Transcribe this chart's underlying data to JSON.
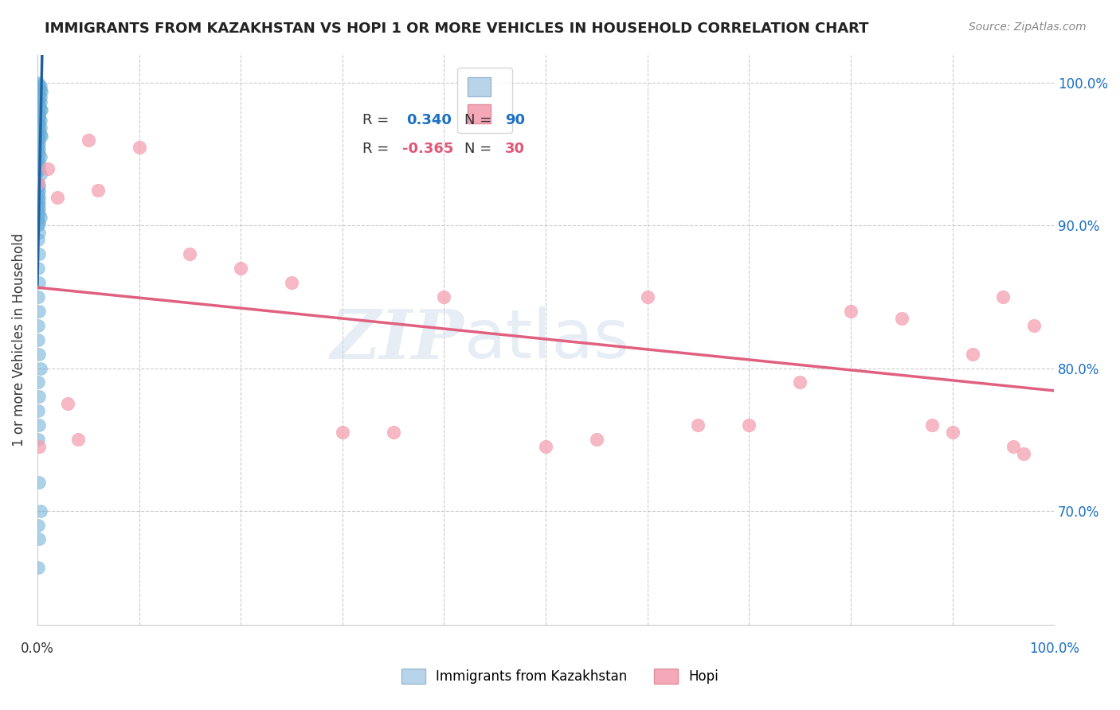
{
  "title": "IMMIGRANTS FROM KAZAKHSTAN VS HOPI 1 OR MORE VEHICLES IN HOUSEHOLD CORRELATION CHART",
  "source": "Source: ZipAtlas.com",
  "ylabel": "1 or more Vehicles in Household",
  "ylabel_right_ticks": [
    "70.0%",
    "80.0%",
    "90.0%",
    "100.0%"
  ],
  "ylabel_right_vals": [
    0.7,
    0.8,
    0.9,
    1.0
  ],
  "blue_color": "#6aaed6",
  "blue_line_color": "#2060a0",
  "pink_color": "#f4a0b0",
  "pink_line_color": "#e06080",
  "blue_R": 0.34,
  "blue_N": 90,
  "pink_R": -0.365,
  "pink_N": 30,
  "blue_scatter": {
    "x": [
      0.001,
      0.002,
      0.003,
      0.001,
      0.002,
      0.003,
      0.004,
      0.001,
      0.002,
      0.002,
      0.003,
      0.001,
      0.002,
      0.003,
      0.001,
      0.002,
      0.001,
      0.002,
      0.003,
      0.004,
      0.001,
      0.002,
      0.001,
      0.002,
      0.001,
      0.002,
      0.003,
      0.001,
      0.002,
      0.001,
      0.002,
      0.003,
      0.001,
      0.002,
      0.001,
      0.002,
      0.003,
      0.004,
      0.001,
      0.002,
      0.001,
      0.002,
      0.001,
      0.002,
      0.001,
      0.002,
      0.003,
      0.001,
      0.002,
      0.001,
      0.002,
      0.001,
      0.003,
      0.001,
      0.002,
      0.001,
      0.002,
      0.001,
      0.002,
      0.001,
      0.002,
      0.001,
      0.002,
      0.001,
      0.002,
      0.003,
      0.001,
      0.002,
      0.001,
      0.002,
      0.001,
      0.002,
      0.001,
      0.002,
      0.001,
      0.002,
      0.001,
      0.001,
      0.002,
      0.003,
      0.001,
      0.002,
      0.001,
      0.002,
      0.001,
      0.002,
      0.003,
      0.001,
      0.002,
      0.001
    ],
    "y": [
      1.0,
      0.999,
      0.998,
      0.997,
      0.996,
      0.995,
      0.994,
      0.993,
      0.992,
      0.991,
      0.99,
      0.989,
      0.988,
      0.987,
      0.986,
      0.985,
      0.984,
      0.983,
      0.982,
      0.981,
      0.98,
      0.979,
      0.978,
      0.977,
      0.976,
      0.975,
      0.974,
      0.973,
      0.972,
      0.971,
      0.97,
      0.969,
      0.968,
      0.967,
      0.966,
      0.965,
      0.964,
      0.963,
      0.962,
      0.961,
      0.96,
      0.958,
      0.956,
      0.954,
      0.952,
      0.95,
      0.948,
      0.946,
      0.944,
      0.942,
      0.94,
      0.938,
      0.936,
      0.93,
      0.928,
      0.926,
      0.924,
      0.922,
      0.92,
      0.918,
      0.916,
      0.914,
      0.912,
      0.91,
      0.908,
      0.906,
      0.904,
      0.902,
      0.9,
      0.895,
      0.89,
      0.88,
      0.87,
      0.86,
      0.85,
      0.84,
      0.83,
      0.82,
      0.81,
      0.8,
      0.79,
      0.78,
      0.77,
      0.76,
      0.75,
      0.72,
      0.7,
      0.69,
      0.68,
      0.66
    ]
  },
  "pink_scatter": {
    "x": [
      0.001,
      0.002,
      0.05,
      0.1,
      0.06,
      0.15,
      0.2,
      0.25,
      0.3,
      0.35,
      0.4,
      0.5,
      0.55,
      0.6,
      0.65,
      0.7,
      0.75,
      0.8,
      0.85,
      0.88,
      0.9,
      0.92,
      0.95,
      0.96,
      0.97,
      0.98,
      0.01,
      0.02,
      0.03,
      0.04
    ],
    "y": [
      0.93,
      0.745,
      0.96,
      0.955,
      0.925,
      0.88,
      0.87,
      0.86,
      0.755,
      0.755,
      0.85,
      0.745,
      0.75,
      0.85,
      0.76,
      0.76,
      0.79,
      0.84,
      0.835,
      0.76,
      0.755,
      0.81,
      0.85,
      0.745,
      0.74,
      0.83,
      0.94,
      0.92,
      0.775,
      0.75
    ]
  },
  "xlim": [
    0.0,
    1.0
  ],
  "ylim": [
    0.62,
    1.02
  ],
  "grid_color": "#cccccc",
  "background_color": "#ffffff",
  "watermark_zip": "ZIP",
  "watermark_atlas": "atlas",
  "watermark_color_zip": "#c8d8e8",
  "watermark_color_atlas": "#c8d8e8"
}
